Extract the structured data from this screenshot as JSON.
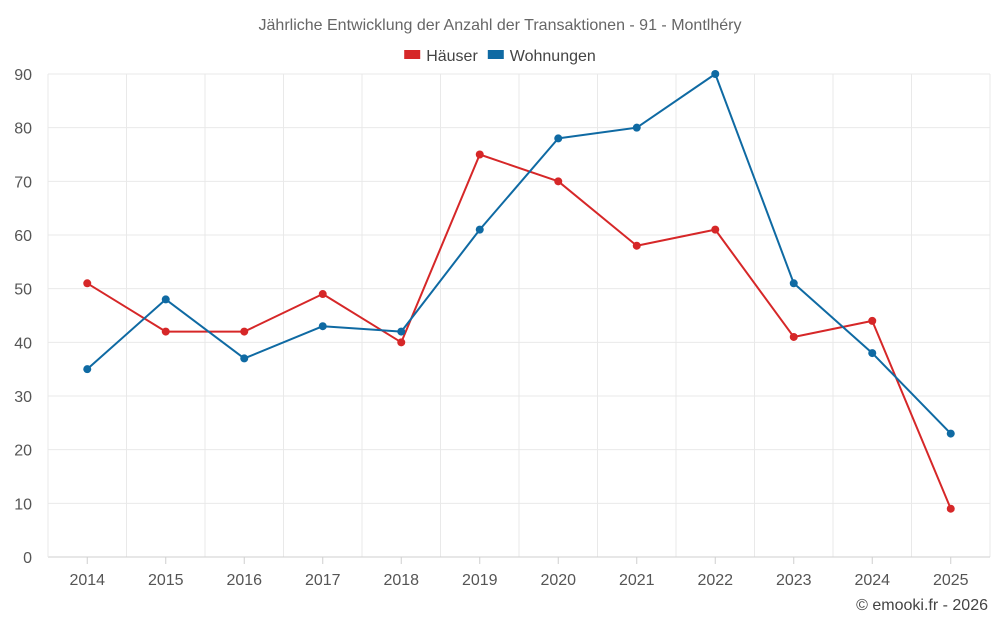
{
  "chart_data": {
    "type": "line",
    "title": "Jährliche Entwicklung der Anzahl der Transaktionen - 91 - Montlhéry",
    "xlabel": "",
    "ylabel": "",
    "categories": [
      "2014",
      "2015",
      "2016",
      "2017",
      "2018",
      "2019",
      "2020",
      "2021",
      "2022",
      "2023",
      "2024",
      "2025"
    ],
    "ylim": [
      0,
      90
    ],
    "yticks": [
      0,
      10,
      20,
      30,
      40,
      50,
      60,
      70,
      80,
      90
    ],
    "grid": true,
    "legend_position": "top-center",
    "series": [
      {
        "name": "Häuser",
        "color": "#d62728",
        "values": [
          51,
          42,
          42,
          49,
          40,
          75,
          70,
          58,
          61,
          41,
          44,
          9
        ]
      },
      {
        "name": "Wohnungen",
        "color": "#0f6aa3",
        "values": [
          35,
          48,
          37,
          43,
          42,
          61,
          78,
          80,
          90,
          51,
          38,
          23
        ]
      }
    ]
  },
  "credit": "© emooki.fr - 2026"
}
